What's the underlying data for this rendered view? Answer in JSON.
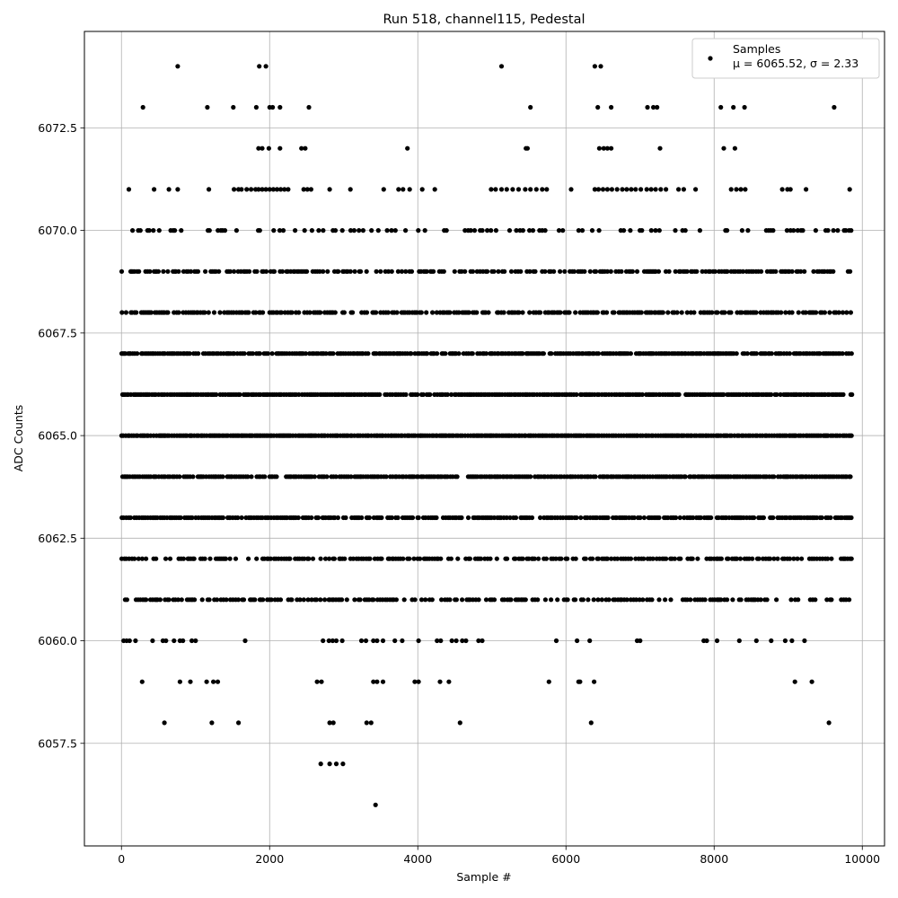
{
  "chart_data": {
    "type": "scatter",
    "title": "Run 518, channel115, Pedestal",
    "xlabel": "Sample #",
    "ylabel": "ADC Counts",
    "xlim": [
      -500,
      10300
    ],
    "ylim": [
      6055.0,
      6074.85
    ],
    "x_ticks": [
      0,
      2000,
      4000,
      6000,
      8000,
      10000
    ],
    "x_tick_labels": [
      "0",
      "2000",
      "4000",
      "6000",
      "8000",
      "10000"
    ],
    "y_ticks": [
      6057.5,
      6060.0,
      6062.5,
      6065.0,
      6067.5,
      6070.0,
      6072.5
    ],
    "y_tick_labels": [
      "6057.5",
      "6060.0",
      "6062.5",
      "6065.0",
      "6067.5",
      "6070.0",
      "6072.5"
    ],
    "grid": true,
    "legend_position": "top-right",
    "marker_color": "#000000",
    "series": [
      {
        "name": "Samples",
        "stats_label": "μ = 6065.52, σ = 2.33",
        "n_samples": 9870,
        "levels": [
          6056,
          6057,
          6058,
          6059,
          6060,
          6061,
          6062,
          6063,
          6064,
          6065,
          6066,
          6067,
          6068,
          6069,
          6070,
          6071,
          6072,
          6073,
          6074
        ],
        "dense_levels": [
          6061,
          6062,
          6063,
          6064,
          6065,
          6066,
          6067,
          6068,
          6069
        ],
        "sparse_points": [
          [
            3430,
            6056
          ],
          [
            2690,
            6057
          ],
          [
            2810,
            6057
          ],
          [
            2900,
            6057
          ],
          [
            2990,
            6057
          ],
          [
            580,
            6058
          ],
          [
            1220,
            6058
          ],
          [
            1580,
            6058
          ],
          [
            2810,
            6058
          ],
          [
            2860,
            6058
          ],
          [
            3310,
            6058
          ],
          [
            3370,
            6058
          ],
          [
            4570,
            6058
          ],
          [
            6340,
            6058
          ],
          [
            9550,
            6058
          ],
          [
            280,
            6059
          ],
          [
            790,
            6059
          ],
          [
            930,
            6059
          ],
          [
            1150,
            6059
          ],
          [
            1240,
            6059
          ],
          [
            1300,
            6059
          ],
          [
            2640,
            6059
          ],
          [
            2700,
            6059
          ],
          [
            3400,
            6059
          ],
          [
            3450,
            6059
          ],
          [
            3530,
            6059
          ],
          [
            3960,
            6059
          ],
          [
            4010,
            6059
          ],
          [
            4300,
            6059
          ],
          [
            4420,
            6059
          ],
          [
            5770,
            6059
          ],
          [
            6170,
            6059
          ],
          [
            6190,
            6059
          ],
          [
            6380,
            6059
          ],
          [
            9090,
            6059
          ],
          [
            9320,
            6059
          ],
          [
            30,
            6060
          ],
          [
            70,
            6060
          ],
          [
            110,
            6060
          ],
          [
            190,
            6060
          ],
          [
            420,
            6060
          ],
          [
            560,
            6060
          ],
          [
            600,
            6060
          ],
          [
            710,
            6060
          ],
          [
            790,
            6060
          ],
          [
            830,
            6060
          ],
          [
            950,
            6060
          ],
          [
            1000,
            6060
          ],
          [
            1670,
            6060
          ],
          [
            2720,
            6060
          ],
          [
            2800,
            6060
          ],
          [
            2850,
            6060
          ],
          [
            2900,
            6060
          ],
          [
            2980,
            6060
          ],
          [
            3240,
            6060
          ],
          [
            3300,
            6060
          ],
          [
            3400,
            6060
          ],
          [
            3450,
            6060
          ],
          [
            3530,
            6060
          ],
          [
            3690,
            6060
          ],
          [
            3790,
            6060
          ],
          [
            4010,
            6060
          ],
          [
            4260,
            6060
          ],
          [
            4310,
            6060
          ],
          [
            4460,
            6060
          ],
          [
            4520,
            6060
          ],
          [
            4600,
            6060
          ],
          [
            4650,
            6060
          ],
          [
            4820,
            6060
          ],
          [
            4870,
            6060
          ],
          [
            5870,
            6060
          ],
          [
            6150,
            6060
          ],
          [
            6320,
            6060
          ],
          [
            6960,
            6060
          ],
          [
            7000,
            6060
          ],
          [
            7860,
            6060
          ],
          [
            7900,
            6060
          ],
          [
            8040,
            6060
          ],
          [
            8340,
            6060
          ],
          [
            8570,
            6060
          ],
          [
            8770,
            6060
          ],
          [
            8960,
            6060
          ],
          [
            9050,
            6060
          ],
          [
            9220,
            6060
          ],
          [
            100,
            6071
          ],
          [
            440,
            6071
          ],
          [
            640,
            6071
          ],
          [
            760,
            6071
          ],
          [
            1180,
            6071
          ],
          [
            1520,
            6071
          ],
          [
            1580,
            6071
          ],
          [
            1620,
            6071
          ],
          [
            1690,
            6071
          ],
          [
            1750,
            6071
          ],
          [
            1810,
            6071
          ],
          [
            1850,
            6071
          ],
          [
            1900,
            6071
          ],
          [
            1950,
            6071
          ],
          [
            2000,
            6071
          ],
          [
            2050,
            6071
          ],
          [
            2100,
            6071
          ],
          [
            2150,
            6071
          ],
          [
            2200,
            6071
          ],
          [
            2250,
            6071
          ],
          [
            2460,
            6071
          ],
          [
            2510,
            6071
          ],
          [
            2560,
            6071
          ],
          [
            2810,
            6071
          ],
          [
            3090,
            6071
          ],
          [
            3540,
            6071
          ],
          [
            3740,
            6071
          ],
          [
            3800,
            6071
          ],
          [
            3890,
            6071
          ],
          [
            4060,
            6071
          ],
          [
            4230,
            6071
          ],
          [
            4990,
            6071
          ],
          [
            5050,
            6071
          ],
          [
            5130,
            6071
          ],
          [
            5200,
            6071
          ],
          [
            5280,
            6071
          ],
          [
            5360,
            6071
          ],
          [
            5450,
            6071
          ],
          [
            5520,
            6071
          ],
          [
            5600,
            6071
          ],
          [
            5680,
            6071
          ],
          [
            5740,
            6071
          ],
          [
            6070,
            6071
          ],
          [
            6390,
            6071
          ],
          [
            6440,
            6071
          ],
          [
            6500,
            6071
          ],
          [
            6560,
            6071
          ],
          [
            6620,
            6071
          ],
          [
            6690,
            6071
          ],
          [
            6760,
            6071
          ],
          [
            6820,
            6071
          ],
          [
            6880,
            6071
          ],
          [
            6940,
            6071
          ],
          [
            7010,
            6071
          ],
          [
            7090,
            6071
          ],
          [
            7150,
            6071
          ],
          [
            7210,
            6071
          ],
          [
            7280,
            6071
          ],
          [
            7350,
            6071
          ],
          [
            7520,
            6071
          ],
          [
            7590,
            6071
          ],
          [
            7750,
            6071
          ],
          [
            8230,
            6071
          ],
          [
            8300,
            6071
          ],
          [
            8360,
            6071
          ],
          [
            8420,
            6071
          ],
          [
            8920,
            6071
          ],
          [
            8990,
            6071
          ],
          [
            9030,
            6071
          ],
          [
            9240,
            6071
          ],
          [
            9830,
            6071
          ],
          [
            1850,
            6072
          ],
          [
            1900,
            6072
          ],
          [
            1990,
            6072
          ],
          [
            2140,
            6072
          ],
          [
            2430,
            6072
          ],
          [
            2480,
            6072
          ],
          [
            3860,
            6072
          ],
          [
            5460,
            6072
          ],
          [
            5480,
            6072
          ],
          [
            6450,
            6072
          ],
          [
            6510,
            6072
          ],
          [
            6560,
            6072
          ],
          [
            6610,
            6072
          ],
          [
            7270,
            6072
          ],
          [
            8130,
            6072
          ],
          [
            8280,
            6072
          ],
          [
            290,
            6073
          ],
          [
            1160,
            6073
          ],
          [
            1510,
            6073
          ],
          [
            1820,
            6073
          ],
          [
            2000,
            6073
          ],
          [
            2040,
            6073
          ],
          [
            2140,
            6073
          ],
          [
            2530,
            6073
          ],
          [
            5520,
            6073
          ],
          [
            6430,
            6073
          ],
          [
            6610,
            6073
          ],
          [
            7100,
            6073
          ],
          [
            7180,
            6073
          ],
          [
            7230,
            6073
          ],
          [
            8090,
            6073
          ],
          [
            8260,
            6073
          ],
          [
            8410,
            6073
          ],
          [
            9620,
            6073
          ],
          [
            760,
            6074
          ],
          [
            1860,
            6074
          ],
          [
            1950,
            6074
          ],
          [
            5130,
            6074
          ],
          [
            6390,
            6074
          ],
          [
            6470,
            6074
          ]
        ]
      }
    ]
  }
}
